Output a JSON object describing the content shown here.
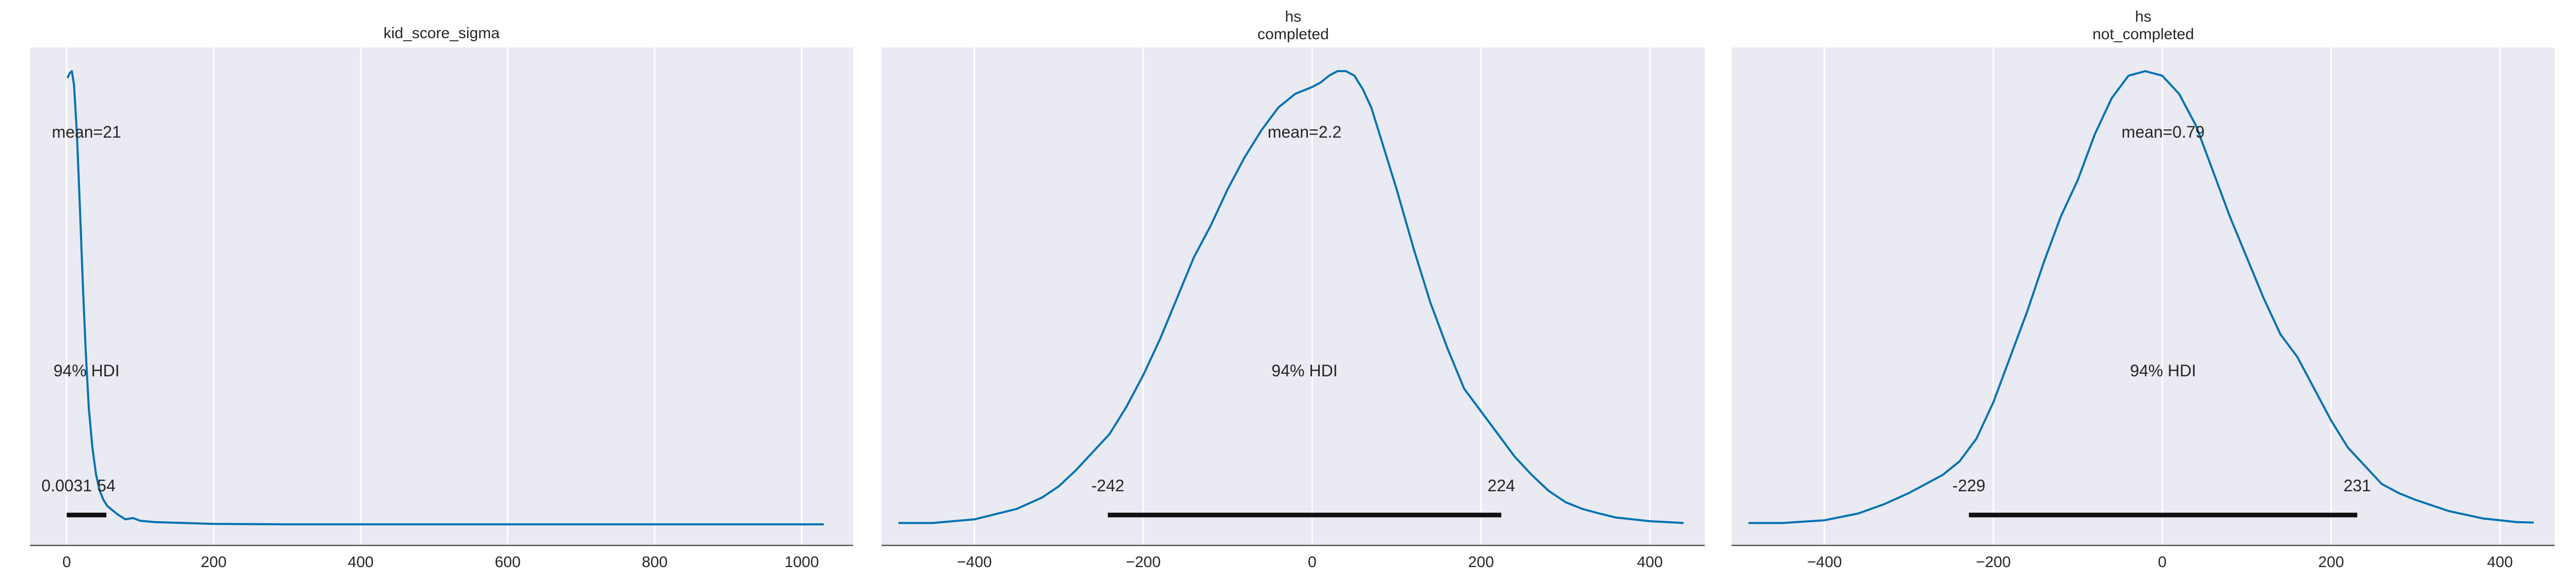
{
  "colors": {
    "figure_background": "#ffffff",
    "panel_background": "#eaeaf2",
    "grid": "#ffffff",
    "density_line": "#0072b2",
    "hdi_bar": "#111111",
    "axis_line": "#555555",
    "text": "#262626"
  },
  "chart_data": [
    {
      "type": "line",
      "plot": "posterior density",
      "title_lines": [
        "kid_score_sigma"
      ],
      "xlim": [
        -50,
        1070
      ],
      "xticks": [
        0,
        200,
        400,
        600,
        800,
        1000
      ],
      "xtick_labels": [
        "0",
        "200",
        "400",
        "600",
        "800",
        "1000"
      ],
      "grid": "vertical",
      "mean_label": "mean=21",
      "hdi_label": "94% HDI",
      "hdi": [
        0.0031,
        54
      ],
      "hdi_low_label": "0.0031",
      "hdi_high_label": "54",
      "density": {
        "x": [
          1,
          4,
          7,
          10,
          14,
          18,
          22,
          26,
          30,
          35,
          40,
          45,
          50,
          55,
          60,
          70,
          80,
          90,
          100,
          120,
          140,
          160,
          200,
          300,
          500,
          700,
          900,
          1030
        ],
        "y": [
          0.985,
          0.995,
          1.0,
          0.97,
          0.86,
          0.7,
          0.53,
          0.38,
          0.26,
          0.17,
          0.11,
          0.075,
          0.055,
          0.042,
          0.035,
          0.022,
          0.012,
          0.015,
          0.009,
          0.006,
          0.005,
          0.004,
          0.002,
          0.001,
          0.001,
          0.001,
          0.001,
          0.001
        ]
      }
    },
    {
      "type": "line",
      "plot": "posterior density",
      "title_lines": [
        "hs",
        "completed"
      ],
      "xlim": [
        -510,
        465
      ],
      "xticks": [
        -400,
        -200,
        0,
        200,
        400
      ],
      "xtick_labels": [
        "−400",
        "−200",
        "0",
        "200",
        "400"
      ],
      "grid": "vertical",
      "mean_label": "mean=2.2",
      "hdi_label": "94% HDI",
      "hdi": [
        -242,
        224
      ],
      "hdi_low_label": "-242",
      "hdi_high_label": "224",
      "density": {
        "x": [
          -490,
          -450,
          -400,
          -350,
          -320,
          -300,
          -280,
          -260,
          -240,
          -220,
          -200,
          -180,
          -160,
          -140,
          -120,
          -100,
          -80,
          -60,
          -40,
          -20,
          0,
          10,
          20,
          30,
          40,
          50,
          60,
          70,
          80,
          100,
          120,
          140,
          160,
          180,
          200,
          220,
          240,
          260,
          280,
          300,
          320,
          340,
          360,
          400,
          440
        ],
        "y": [
          0.004,
          0.004,
          0.012,
          0.035,
          0.06,
          0.085,
          0.12,
          0.16,
          0.2,
          0.26,
          0.33,
          0.41,
          0.5,
          0.59,
          0.66,
          0.74,
          0.81,
          0.87,
          0.92,
          0.95,
          0.965,
          0.975,
          0.99,
          1.0,
          1.0,
          0.99,
          0.96,
          0.92,
          0.86,
          0.74,
          0.61,
          0.49,
          0.39,
          0.3,
          0.25,
          0.2,
          0.15,
          0.11,
          0.075,
          0.05,
          0.035,
          0.025,
          0.016,
          0.008,
          0.004
        ]
      }
    },
    {
      "type": "line",
      "plot": "posterior density",
      "title_lines": [
        "hs",
        "not_completed"
      ],
      "xlim": [
        -510,
        465
      ],
      "xticks": [
        -400,
        -200,
        0,
        200,
        400
      ],
      "xtick_labels": [
        "−400",
        "−200",
        "0",
        "200",
        "400"
      ],
      "grid": "vertical",
      "mean_label": "mean=0.79",
      "hdi_label": "94% HDI",
      "hdi": [
        -229,
        231
      ],
      "hdi_low_label": "-229",
      "hdi_high_label": "231",
      "density": {
        "x": [
          -490,
          -450,
          -400,
          -360,
          -330,
          -300,
          -280,
          -260,
          -240,
          -220,
          -200,
          -180,
          -160,
          -140,
          -120,
          -100,
          -80,
          -60,
          -40,
          -20,
          0,
          20,
          40,
          60,
          80,
          100,
          120,
          140,
          160,
          180,
          200,
          220,
          240,
          260,
          280,
          300,
          340,
          380,
          420,
          440
        ],
        "y": [
          0.004,
          0.004,
          0.01,
          0.025,
          0.045,
          0.07,
          0.09,
          0.11,
          0.14,
          0.19,
          0.27,
          0.37,
          0.47,
          0.58,
          0.68,
          0.76,
          0.86,
          0.94,
          0.99,
          1.0,
          0.99,
          0.95,
          0.88,
          0.78,
          0.68,
          0.59,
          0.5,
          0.42,
          0.37,
          0.3,
          0.23,
          0.17,
          0.13,
          0.09,
          0.07,
          0.055,
          0.03,
          0.014,
          0.006,
          0.005
        ]
      }
    }
  ]
}
